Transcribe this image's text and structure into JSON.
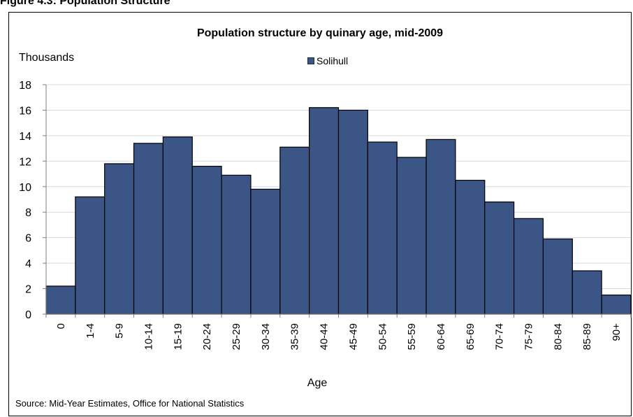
{
  "figure_heading": "Figure 4.3: Population Structure",
  "source": "Source: Mid-Year Estimates, Office for National Statistics",
  "chart_data": {
    "type": "bar",
    "title": "Population structure by quinary age, mid-2009",
    "ylabel": "Thousands",
    "xlabel": "Age",
    "legend_position": "top-center",
    "grid": true,
    "ylim": [
      0,
      18
    ],
    "yticks": [
      0,
      2,
      4,
      6,
      8,
      10,
      12,
      14,
      16,
      18
    ],
    "categories": [
      "0",
      "1-4",
      "5-9",
      "10-14",
      "15-19",
      "20-24",
      "25-29",
      "30-34",
      "35-39",
      "40-44",
      "45-49",
      "50-54",
      "55-59",
      "60-64",
      "65-69",
      "70-74",
      "75-79",
      "80-84",
      "85-89",
      "90+"
    ],
    "series": [
      {
        "name": "Solihull",
        "color": "#3c5587",
        "values": [
          2.2,
          9.2,
          11.8,
          13.4,
          13.9,
          11.6,
          10.9,
          9.8,
          13.1,
          16.2,
          16.0,
          13.5,
          12.3,
          13.7,
          10.5,
          8.8,
          7.5,
          5.9,
          3.4,
          1.5
        ]
      }
    ]
  }
}
